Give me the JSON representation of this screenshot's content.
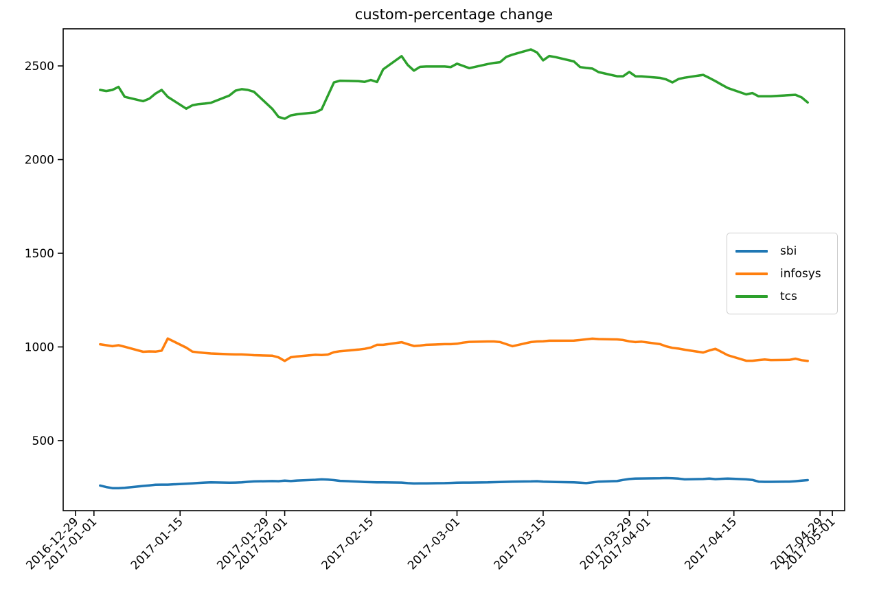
{
  "chart_data": {
    "type": "line",
    "title": "custom-percentage change",
    "xlabel": "",
    "ylabel": "",
    "grid": false,
    "legend_position": "center right",
    "xlim": [
      "2016-12-27",
      "2017-05-03"
    ],
    "ylim": [
      126,
      2698
    ],
    "yticks": [
      500,
      1000,
      1500,
      2000,
      2500
    ],
    "xticks": [
      "2016-12-29",
      "2017-01-01",
      "2017-01-15",
      "2017-01-29",
      "2017-02-01",
      "2017-02-15",
      "2017-03-01",
      "2017-03-15",
      "2017-03-29",
      "2017-04-01",
      "2017-04-15",
      "2017-04-29",
      "2017-05-01"
    ],
    "x": [
      "2017-01-02",
      "2017-01-03",
      "2017-01-04",
      "2017-01-05",
      "2017-01-06",
      "2017-01-09",
      "2017-01-10",
      "2017-01-11",
      "2017-01-12",
      "2017-01-13",
      "2017-01-16",
      "2017-01-17",
      "2017-01-18",
      "2017-01-19",
      "2017-01-20",
      "2017-01-23",
      "2017-01-24",
      "2017-01-25",
      "2017-01-26",
      "2017-01-27",
      "2017-01-30",
      "2017-01-31",
      "2017-02-01",
      "2017-02-02",
      "2017-02-03",
      "2017-02-06",
      "2017-02-07",
      "2017-02-08",
      "2017-02-09",
      "2017-02-10",
      "2017-02-13",
      "2017-02-14",
      "2017-02-15",
      "2017-02-16",
      "2017-02-17",
      "2017-02-20",
      "2017-02-21",
      "2017-02-22",
      "2017-02-23",
      "2017-02-24",
      "2017-02-27",
      "2017-02-28",
      "2017-03-01",
      "2017-03-02",
      "2017-03-03",
      "2017-03-06",
      "2017-03-07",
      "2017-03-08",
      "2017-03-09",
      "2017-03-10",
      "2017-03-13",
      "2017-03-14",
      "2017-03-15",
      "2017-03-16",
      "2017-03-17",
      "2017-03-20",
      "2017-03-21",
      "2017-03-22",
      "2017-03-23",
      "2017-03-24",
      "2017-03-27",
      "2017-03-28",
      "2017-03-29",
      "2017-03-30",
      "2017-03-31",
      "2017-04-03",
      "2017-04-04",
      "2017-04-05",
      "2017-04-06",
      "2017-04-07",
      "2017-04-10",
      "2017-04-11",
      "2017-04-12",
      "2017-04-13",
      "2017-04-14",
      "2017-04-17",
      "2017-04-18",
      "2017-04-19",
      "2017-04-20",
      "2017-04-21",
      "2017-04-24",
      "2017-04-25",
      "2017-04-26",
      "2017-04-27"
    ],
    "series": [
      {
        "name": "sbi",
        "color": "#1f77b4",
        "values": [
          260,
          252,
          246,
          246,
          248,
          258,
          261,
          264,
          265,
          265,
          270,
          272,
          274,
          276,
          277,
          275,
          276,
          277,
          280,
          282,
          284,
          283,
          286,
          284,
          287,
          291,
          293,
          292,
          289,
          285,
          281,
          279,
          278,
          277,
          277,
          276,
          273,
          271,
          272,
          272,
          273,
          274,
          275,
          276,
          276,
          277,
          278,
          279,
          280,
          281,
          282,
          283,
          281,
          280,
          279,
          277,
          275,
          273,
          277,
          281,
          284,
          290,
          295,
          297,
          298,
          299,
          300,
          299,
          297,
          293,
          295,
          297,
          294,
          296,
          297,
          293,
          290,
          281,
          280,
          280,
          281,
          283,
          286,
          289
        ]
      },
      {
        "name": "infosys",
        "color": "#ff7f0e",
        "values": [
          1014,
          1009,
          1004,
          1009,
          1001,
          974,
          976,
          975,
          980,
          1045,
          996,
          975,
          971,
          968,
          965,
          961,
          960,
          960,
          958,
          956,
          953,
          944,
          925,
          945,
          949,
          958,
          957,
          959,
          972,
          977,
          986,
          990,
          997,
          1011,
          1011,
          1025,
          1015,
          1005,
          1007,
          1011,
          1015,
          1015,
          1017,
          1023,
          1027,
          1029,
          1029,
          1026,
          1015,
          1004,
          1026,
          1029,
          1030,
          1033,
          1033,
          1034,
          1037,
          1041,
          1044,
          1042,
          1040,
          1037,
          1030,
          1026,
          1028,
          1015,
          1003,
          995,
          991,
          985,
          970,
          981,
          990,
          973,
          956,
          926,
          926,
          930,
          933,
          930,
          931,
          937,
          929,
          925
        ]
      },
      {
        "name": "tcs",
        "color": "#2ca02c",
        "values": [
          2372,
          2366,
          2372,
          2388,
          2335,
          2312,
          2325,
          2352,
          2372,
          2335,
          2272,
          2290,
          2296,
          2299,
          2303,
          2342,
          2368,
          2376,
          2372,
          2362,
          2270,
          2228,
          2218,
          2236,
          2242,
          2252,
          2268,
          2340,
          2412,
          2421,
          2419,
          2415,
          2425,
          2414,
          2482,
          2552,
          2505,
          2475,
          2495,
          2497,
          2497,
          2494,
          2512,
          2500,
          2488,
          2510,
          2516,
          2520,
          2548,
          2560,
          2588,
          2572,
          2530,
          2553,
          2547,
          2524,
          2494,
          2489,
          2486,
          2467,
          2445,
          2445,
          2468,
          2445,
          2444,
          2436,
          2428,
          2412,
          2430,
          2437,
          2452,
          2436,
          2419,
          2400,
          2382,
          2348,
          2355,
          2338,
          2338,
          2338,
          2344,
          2346,
          2332,
          2305
        ]
      }
    ]
  }
}
